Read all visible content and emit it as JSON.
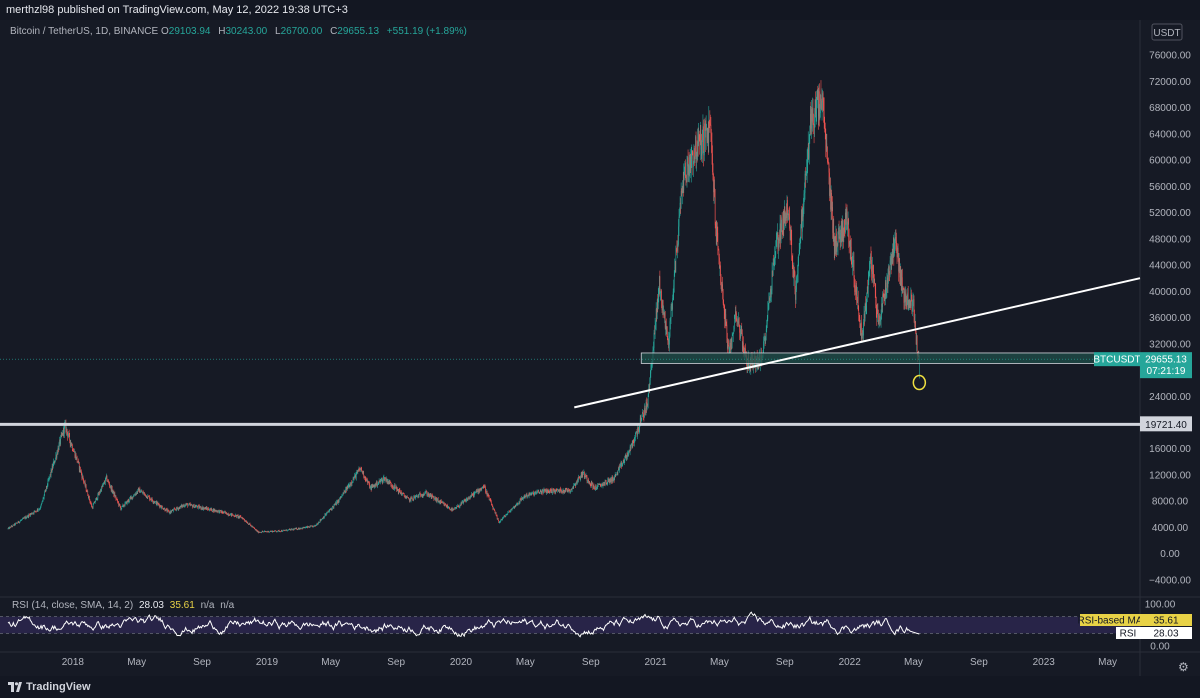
{
  "header": {
    "published_text": "merthzl98 published on TradingView.com, May 12, 2022 19:38 UTC+3"
  },
  "symbol": {
    "name": "Bitcoin / TetherUS, 1D, BINANCE",
    "open_label": "O",
    "open": "29103.94",
    "high_label": "H",
    "high": "30243.00",
    "low_label": "L",
    "low": "26700.00",
    "close_label": "C",
    "close": "29655.13",
    "change": "+551.19 (+1.89%)"
  },
  "price_axis": {
    "currency": "USDT",
    "ticks": [
      "76000.00",
      "72000.00",
      "68000.00",
      "64000.00",
      "60000.00",
      "56000.00",
      "52000.00",
      "48000.00",
      "44000.00",
      "40000.00",
      "36000.00",
      "32000.00",
      "24000.00",
      "16000.00",
      "12000.00",
      "8000.00",
      "4000.00",
      "0.00",
      "−4000.00"
    ],
    "level_label": "19721.40",
    "ticker_badge": "BTCUSDT",
    "last_price": "29655.13",
    "countdown": "07:21:19"
  },
  "rsi": {
    "title": "RSI (14, close, SMA, 14, 2)",
    "rsi_value": "28.03",
    "ma_value": "35.61",
    "na1": "n/a",
    "na2": "n/a",
    "axis_ticks": [
      "100.00",
      "0.00"
    ],
    "ma_badge_label": "RSI-based MA",
    "ma_badge_value": "35.61",
    "rsi_badge_label": "RSI",
    "rsi_badge_value": "28.03"
  },
  "time_axis": {
    "labels": [
      "2018",
      "May",
      "Sep",
      "2019",
      "May",
      "Sep",
      "2020",
      "May",
      "Sep",
      "2021",
      "May",
      "Sep",
      "2022",
      "May",
      "Sep",
      "2023",
      "May"
    ]
  },
  "footer": {
    "brand": "TradingView"
  },
  "colors": {
    "background": "#161a25",
    "up": "#26a69a",
    "down": "#ef5350",
    "zone": "#1f4f4a",
    "line": "#ffffff",
    "rsi_ma": "#e8d246",
    "circle": "#f0e040"
  },
  "chart_data": {
    "type": "candlestick",
    "title": "Bitcoin / TetherUS, 1D, BINANCE",
    "ylim": [
      -6000,
      80000
    ],
    "x_range": [
      "2017-09-01",
      "2023-07-01"
    ],
    "trend_points": [
      {
        "date": "2017-09-01",
        "price": 3800
      },
      {
        "date": "2017-11-01",
        "price": 7000
      },
      {
        "date": "2017-12-17",
        "price": 19500
      },
      {
        "date": "2018-01-10",
        "price": 14000
      },
      {
        "date": "2018-02-06",
        "price": 7000
      },
      {
        "date": "2018-03-05",
        "price": 11500
      },
      {
        "date": "2018-04-01",
        "price": 6900
      },
      {
        "date": "2018-05-05",
        "price": 9700
      },
      {
        "date": "2018-07-01",
        "price": 6300
      },
      {
        "date": "2018-08-01",
        "price": 7500
      },
      {
        "date": "2018-10-01",
        "price": 6500
      },
      {
        "date": "2018-11-15",
        "price": 5500
      },
      {
        "date": "2018-12-15",
        "price": 3300
      },
      {
        "date": "2019-02-01",
        "price": 3500
      },
      {
        "date": "2019-04-01",
        "price": 4200
      },
      {
        "date": "2019-05-15",
        "price": 8000
      },
      {
        "date": "2019-06-26",
        "price": 13000
      },
      {
        "date": "2019-07-15",
        "price": 10000
      },
      {
        "date": "2019-08-10",
        "price": 11500
      },
      {
        "date": "2019-09-25",
        "price": 8200
      },
      {
        "date": "2019-10-26",
        "price": 9300
      },
      {
        "date": "2019-12-17",
        "price": 6600
      },
      {
        "date": "2020-02-13",
        "price": 10300
      },
      {
        "date": "2020-03-12",
        "price": 4800
      },
      {
        "date": "2020-04-30",
        "price": 8800
      },
      {
        "date": "2020-06-01",
        "price": 9500
      },
      {
        "date": "2020-07-25",
        "price": 9700
      },
      {
        "date": "2020-08-17",
        "price": 12300
      },
      {
        "date": "2020-09-08",
        "price": 10000
      },
      {
        "date": "2020-10-15",
        "price": 11500
      },
      {
        "date": "2020-11-15",
        "price": 16000
      },
      {
        "date": "2020-12-17",
        "price": 23000
      },
      {
        "date": "2021-01-08",
        "price": 41000
      },
      {
        "date": "2021-01-25",
        "price": 32000
      },
      {
        "date": "2021-02-21",
        "price": 57000
      },
      {
        "date": "2021-03-13",
        "price": 61000
      },
      {
        "date": "2021-04-14",
        "price": 64800
      },
      {
        "date": "2021-04-25",
        "price": 49000
      },
      {
        "date": "2021-05-19",
        "price": 30000
      },
      {
        "date": "2021-06-01",
        "price": 37000
      },
      {
        "date": "2021-06-22",
        "price": 29000
      },
      {
        "date": "2021-07-20",
        "price": 29500
      },
      {
        "date": "2021-08-15",
        "price": 47000
      },
      {
        "date": "2021-09-06",
        "price": 52800
      },
      {
        "date": "2021-09-21",
        "price": 40000
      },
      {
        "date": "2021-10-20",
        "price": 66000
      },
      {
        "date": "2021-11-10",
        "price": 69000
      },
      {
        "date": "2021-12-04",
        "price": 47000
      },
      {
        "date": "2021-12-27",
        "price": 51000
      },
      {
        "date": "2022-01-24",
        "price": 33000
      },
      {
        "date": "2022-02-10",
        "price": 45000
      },
      {
        "date": "2022-02-24",
        "price": 35000
      },
      {
        "date": "2022-03-28",
        "price": 48200
      },
      {
        "date": "2022-04-11",
        "price": 39500
      },
      {
        "date": "2022-05-01",
        "price": 38000
      },
      {
        "date": "2022-05-09",
        "price": 30000
      },
      {
        "date": "2022-05-12",
        "price": 29655
      }
    ],
    "horizontal_levels": [
      19721.4
    ],
    "support_zone": [
      29000,
      30600
    ],
    "trendline": [
      {
        "date": "2020-08-01",
        "price": 22300
      },
      {
        "date": "2023-07-01",
        "price": 42000
      }
    ],
    "rsi": {
      "ylim": [
        0,
        100
      ],
      "latest": 28.03,
      "ma_latest": 35.61,
      "band": [
        30,
        70
      ]
    }
  }
}
